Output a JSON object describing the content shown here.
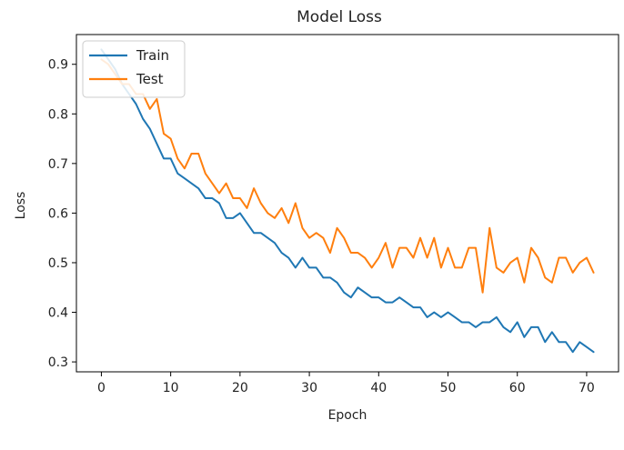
{
  "chart_data": {
    "type": "line",
    "title": "Model Loss",
    "xlabel": "Epoch",
    "ylabel": "Loss",
    "xlim": [
      -3.6,
      74.6
    ],
    "ylim": [
      0.28,
      0.96
    ],
    "xticks": [
      0,
      10,
      20,
      30,
      40,
      50,
      60,
      70
    ],
    "yticks": [
      0.3,
      0.4,
      0.5,
      0.6,
      0.7,
      0.8,
      0.9
    ],
    "grid": false,
    "legend": {
      "placement": "top-left",
      "entries": [
        "Train",
        "Test"
      ]
    },
    "series": [
      {
        "name": "Train",
        "color": "#1f77b4",
        "x": [
          0,
          1,
          2,
          3,
          4,
          5,
          6,
          7,
          8,
          9,
          10,
          11,
          12,
          13,
          14,
          15,
          16,
          17,
          18,
          19,
          20,
          21,
          22,
          23,
          24,
          25,
          26,
          27,
          28,
          29,
          30,
          31,
          32,
          33,
          34,
          35,
          36,
          37,
          38,
          39,
          40,
          41,
          42,
          43,
          44,
          45,
          46,
          47,
          48,
          49,
          50,
          51,
          52,
          53,
          54,
          55,
          56,
          57,
          58,
          59,
          60,
          61,
          62,
          63,
          64,
          65,
          66,
          67,
          68,
          69,
          70,
          71
        ],
        "values": [
          0.93,
          0.91,
          0.89,
          0.86,
          0.84,
          0.82,
          0.79,
          0.77,
          0.74,
          0.71,
          0.71,
          0.68,
          0.67,
          0.66,
          0.65,
          0.63,
          0.63,
          0.62,
          0.59,
          0.59,
          0.6,
          0.58,
          0.56,
          0.56,
          0.55,
          0.54,
          0.52,
          0.51,
          0.49,
          0.51,
          0.49,
          0.49,
          0.47,
          0.47,
          0.46,
          0.44,
          0.43,
          0.45,
          0.44,
          0.43,
          0.43,
          0.42,
          0.42,
          0.43,
          0.42,
          0.41,
          0.41,
          0.39,
          0.4,
          0.39,
          0.4,
          0.39,
          0.38,
          0.38,
          0.37,
          0.38,
          0.38,
          0.39,
          0.37,
          0.36,
          0.38,
          0.35,
          0.37,
          0.37,
          0.34,
          0.36,
          0.34,
          0.34,
          0.32,
          0.34,
          0.33,
          0.32
        ]
      },
      {
        "name": "Test",
        "color": "#ff7f0e",
        "x": [
          0,
          1,
          2,
          3,
          4,
          5,
          6,
          7,
          8,
          9,
          10,
          11,
          12,
          13,
          14,
          15,
          16,
          17,
          18,
          19,
          20,
          21,
          22,
          23,
          24,
          25,
          26,
          27,
          28,
          29,
          30,
          31,
          32,
          33,
          34,
          35,
          36,
          37,
          38,
          39,
          40,
          41,
          42,
          43,
          44,
          45,
          46,
          47,
          48,
          49,
          50,
          51,
          52,
          53,
          54,
          55,
          56,
          57,
          58,
          59,
          60,
          61,
          62,
          63,
          64,
          65,
          66,
          67,
          68,
          69,
          70,
          71
        ],
        "values": [
          0.91,
          0.9,
          0.88,
          0.86,
          0.86,
          0.84,
          0.84,
          0.81,
          0.83,
          0.76,
          0.75,
          0.71,
          0.69,
          0.72,
          0.72,
          0.68,
          0.66,
          0.64,
          0.66,
          0.63,
          0.63,
          0.61,
          0.65,
          0.62,
          0.6,
          0.59,
          0.61,
          0.58,
          0.62,
          0.57,
          0.55,
          0.56,
          0.55,
          0.52,
          0.57,
          0.55,
          0.52,
          0.52,
          0.51,
          0.49,
          0.51,
          0.54,
          0.49,
          0.53,
          0.53,
          0.51,
          0.55,
          0.51,
          0.55,
          0.49,
          0.53,
          0.49,
          0.49,
          0.53,
          0.53,
          0.44,
          0.57,
          0.49,
          0.48,
          0.5,
          0.51,
          0.46,
          0.53,
          0.51,
          0.47,
          0.46,
          0.51,
          0.51,
          0.48,
          0.5,
          0.51,
          0.48
        ]
      }
    ]
  }
}
